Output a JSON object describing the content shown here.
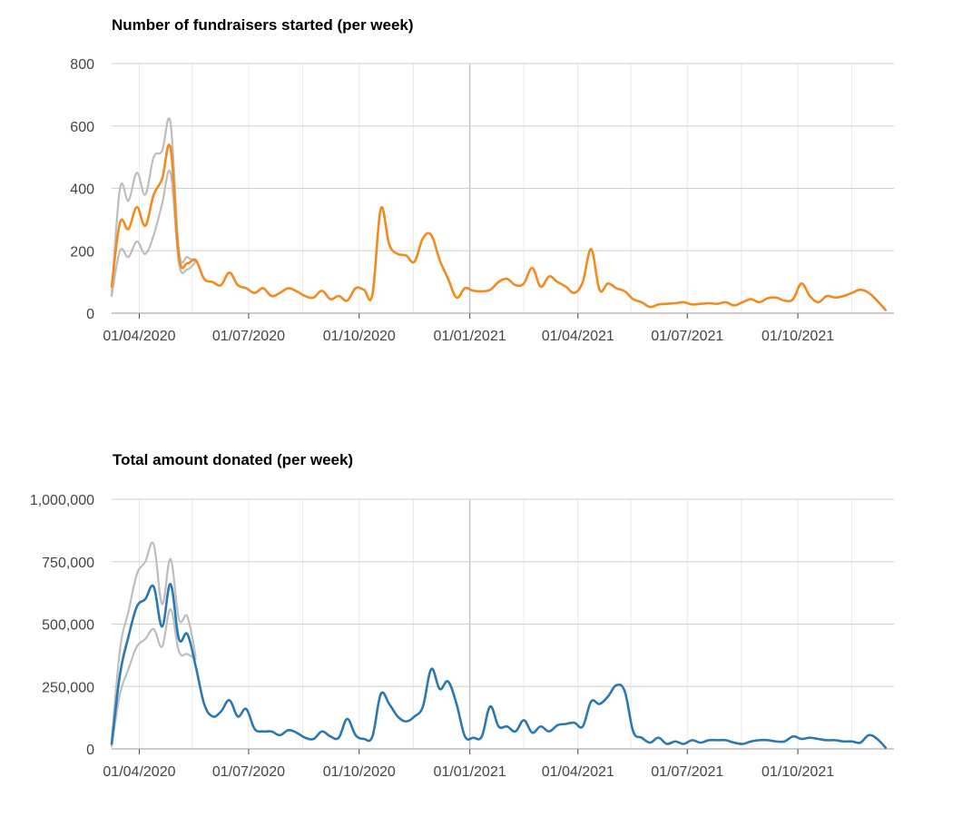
{
  "colors": {
    "fundraisers_line": "#f28a1e",
    "donations_line": "#2a78b1",
    "band_line": "#bdbdbd",
    "grid": "#d0d0d0",
    "grid_minor": "#e8e8e8",
    "axis": "#444444"
  },
  "chart_data": [
    {
      "type": "line",
      "title": "Number of fundraisers started (per week)",
      "xlabel": "",
      "ylabel": "",
      "x_ticks": [
        "01/04/2020",
        "01/07/2020",
        "01/10/2020",
        "01/01/2021",
        "01/04/2021",
        "01/07/2021",
        "01/10/2021"
      ],
      "y_ticks": [
        "0",
        "200",
        "400",
        "600",
        "800"
      ],
      "ylim": [
        0,
        800
      ],
      "xlim": [
        "2020-03-09",
        "2021-12-20"
      ],
      "grid": true,
      "legend": "none",
      "series": [
        {
          "values": [
            [
              "2020-03-09",
              85
            ],
            [
              "2020-03-16",
              290
            ],
            [
              "2020-03-23",
              270
            ],
            [
              "2020-03-30",
              340
            ],
            [
              "2020-04-06",
              280
            ],
            [
              "2020-04-13",
              380
            ],
            [
              "2020-04-20",
              430
            ],
            [
              "2020-04-27",
              530
            ],
            [
              "2020-05-04",
              180
            ],
            [
              "2020-05-11",
              160
            ],
            [
              "2020-05-18",
              170
            ],
            [
              "2020-05-25",
              110
            ],
            [
              "2020-06-01",
              100
            ],
            [
              "2020-06-08",
              90
            ],
            [
              "2020-06-15",
              130
            ],
            [
              "2020-06-22",
              90
            ],
            [
              "2020-06-29",
              80
            ],
            [
              "2020-07-06",
              65
            ],
            [
              "2020-07-13",
              80
            ],
            [
              "2020-07-20",
              55
            ],
            [
              "2020-07-27",
              65
            ],
            [
              "2020-08-03",
              80
            ],
            [
              "2020-08-10",
              70
            ],
            [
              "2020-08-17",
              55
            ],
            [
              "2020-08-24",
              50
            ],
            [
              "2020-08-31",
              72
            ],
            [
              "2020-09-07",
              45
            ],
            [
              "2020-09-14",
              55
            ],
            [
              "2020-09-21",
              40
            ],
            [
              "2020-09-28",
              80
            ],
            [
              "2020-10-05",
              75
            ],
            [
              "2020-10-12",
              60
            ],
            [
              "2020-10-19",
              335
            ],
            [
              "2020-10-26",
              220
            ],
            [
              "2020-11-02",
              190
            ],
            [
              "2020-11-09",
              185
            ],
            [
              "2020-11-16",
              165
            ],
            [
              "2020-11-23",
              240
            ],
            [
              "2020-11-30",
              250
            ],
            [
              "2020-12-07",
              170
            ],
            [
              "2020-12-14",
              110
            ],
            [
              "2020-12-21",
              50
            ],
            [
              "2020-12-28",
              80
            ],
            [
              "2021-01-04",
              72
            ],
            [
              "2021-01-11",
              70
            ],
            [
              "2021-01-18",
              75
            ],
            [
              "2021-01-25",
              100
            ],
            [
              "2021-02-01",
              110
            ],
            [
              "2021-02-08",
              90
            ],
            [
              "2021-02-15",
              95
            ],
            [
              "2021-02-22",
              145
            ],
            [
              "2021-03-01",
              85
            ],
            [
              "2021-03-08",
              118
            ],
            [
              "2021-03-15",
              100
            ],
            [
              "2021-03-22",
              85
            ],
            [
              "2021-03-29",
              65
            ],
            [
              "2021-04-05",
              100
            ],
            [
              "2021-04-12",
              205
            ],
            [
              "2021-04-19",
              75
            ],
            [
              "2021-04-26",
              95
            ],
            [
              "2021-05-03",
              80
            ],
            [
              "2021-05-10",
              70
            ],
            [
              "2021-05-17",
              45
            ],
            [
              "2021-05-24",
              35
            ],
            [
              "2021-05-31",
              20
            ],
            [
              "2021-06-07",
              28
            ],
            [
              "2021-06-14",
              30
            ],
            [
              "2021-06-21",
              32
            ],
            [
              "2021-06-28",
              35
            ],
            [
              "2021-07-05",
              28
            ],
            [
              "2021-07-12",
              30
            ],
            [
              "2021-07-19",
              32
            ],
            [
              "2021-07-26",
              30
            ],
            [
              "2021-08-02",
              35
            ],
            [
              "2021-08-09",
              25
            ],
            [
              "2021-08-16",
              35
            ],
            [
              "2021-08-23",
              45
            ],
            [
              "2021-08-30",
              35
            ],
            [
              "2021-09-06",
              48
            ],
            [
              "2021-09-13",
              50
            ],
            [
              "2021-09-20",
              40
            ],
            [
              "2021-09-27",
              45
            ],
            [
              "2021-10-04",
              95
            ],
            [
              "2021-10-11",
              55
            ],
            [
              "2021-10-18",
              35
            ],
            [
              "2021-10-25",
              55
            ],
            [
              "2021-11-01",
              50
            ],
            [
              "2021-11-08",
              55
            ],
            [
              "2021-11-15",
              65
            ],
            [
              "2021-11-22",
              75
            ],
            [
              "2021-11-29",
              65
            ],
            [
              "2021-12-06",
              40
            ],
            [
              "2021-12-13",
              10
            ]
          ]
        },
        {
          "values": [
            [
              "2020-03-09",
              60
            ],
            [
              "2020-03-16",
              400
            ],
            [
              "2020-03-23",
              360
            ],
            [
              "2020-03-30",
              450
            ],
            [
              "2020-04-06",
              380
            ],
            [
              "2020-04-13",
              500
            ],
            [
              "2020-04-20",
              520
            ],
            [
              "2020-04-27",
              610
            ],
            [
              "2020-05-04",
              200
            ],
            [
              "2020-05-11",
              180
            ],
            [
              "2020-05-18",
              165
            ]
          ]
        },
        {
          "values": [
            [
              "2020-03-09",
              55
            ],
            [
              "2020-03-16",
              200
            ],
            [
              "2020-03-23",
              180
            ],
            [
              "2020-03-30",
              230
            ],
            [
              "2020-04-06",
              190
            ],
            [
              "2020-04-13",
              250
            ],
            [
              "2020-04-20",
              350
            ],
            [
              "2020-04-27",
              450
            ],
            [
              "2020-05-04",
              160
            ],
            [
              "2020-05-11",
              140
            ],
            [
              "2020-05-18",
              165
            ]
          ]
        }
      ]
    },
    {
      "type": "line",
      "title": "Total amount donated (per week)",
      "xlabel": "",
      "ylabel": "",
      "x_ticks": [
        "01/04/2020",
        "01/07/2020",
        "01/10/2020",
        "01/01/2021",
        "01/04/2021",
        "01/07/2021",
        "01/10/2021"
      ],
      "y_ticks": [
        "0",
        "250,000",
        "500,000",
        "750,000",
        "1,000,000"
      ],
      "ylim": [
        0,
        1000000
      ],
      "xlim": [
        "2020-03-09",
        "2021-12-20"
      ],
      "grid": true,
      "legend": "none",
      "series": [
        {
          "values": [
            [
              "2020-03-09",
              20000
            ],
            [
              "2020-03-16",
              300000
            ],
            [
              "2020-03-23",
              450000
            ],
            [
              "2020-03-30",
              570000
            ],
            [
              "2020-04-06",
              600000
            ],
            [
              "2020-04-13",
              650000
            ],
            [
              "2020-04-20",
              490000
            ],
            [
              "2020-04-27",
              660000
            ],
            [
              "2020-05-04",
              440000
            ],
            [
              "2020-05-11",
              460000
            ],
            [
              "2020-05-18",
              330000
            ],
            [
              "2020-05-25",
              180000
            ],
            [
              "2020-06-01",
              130000
            ],
            [
              "2020-06-08",
              150000
            ],
            [
              "2020-06-15",
              195000
            ],
            [
              "2020-06-22",
              130000
            ],
            [
              "2020-06-29",
              160000
            ],
            [
              "2020-07-06",
              80000
            ],
            [
              "2020-07-13",
              70000
            ],
            [
              "2020-07-20",
              70000
            ],
            [
              "2020-07-27",
              55000
            ],
            [
              "2020-08-03",
              75000
            ],
            [
              "2020-08-10",
              65000
            ],
            [
              "2020-08-17",
              45000
            ],
            [
              "2020-08-24",
              40000
            ],
            [
              "2020-08-31",
              70000
            ],
            [
              "2020-09-07",
              50000
            ],
            [
              "2020-09-14",
              45000
            ],
            [
              "2020-09-21",
              120000
            ],
            [
              "2020-09-28",
              55000
            ],
            [
              "2020-10-05",
              40000
            ],
            [
              "2020-10-12",
              50000
            ],
            [
              "2020-10-19",
              220000
            ],
            [
              "2020-10-26",
              180000
            ],
            [
              "2020-11-02",
              130000
            ],
            [
              "2020-11-09",
              110000
            ],
            [
              "2020-11-16",
              130000
            ],
            [
              "2020-11-23",
              170000
            ],
            [
              "2020-11-30",
              320000
            ],
            [
              "2020-12-07",
              240000
            ],
            [
              "2020-12-14",
              270000
            ],
            [
              "2020-12-21",
              180000
            ],
            [
              "2020-12-28",
              50000
            ],
            [
              "2021-01-04",
              45000
            ],
            [
              "2021-01-11",
              50000
            ],
            [
              "2021-01-18",
              170000
            ],
            [
              "2021-01-25",
              90000
            ],
            [
              "2021-02-01",
              90000
            ],
            [
              "2021-02-08",
              70000
            ],
            [
              "2021-02-15",
              115000
            ],
            [
              "2021-02-22",
              65000
            ],
            [
              "2021-03-01",
              90000
            ],
            [
              "2021-03-08",
              70000
            ],
            [
              "2021-03-15",
              95000
            ],
            [
              "2021-03-22",
              100000
            ],
            [
              "2021-03-29",
              105000
            ],
            [
              "2021-04-05",
              90000
            ],
            [
              "2021-04-12",
              190000
            ],
            [
              "2021-04-19",
              180000
            ],
            [
              "2021-04-26",
              210000
            ],
            [
              "2021-05-03",
              255000
            ],
            [
              "2021-05-10",
              230000
            ],
            [
              "2021-05-17",
              70000
            ],
            [
              "2021-05-24",
              45000
            ],
            [
              "2021-05-31",
              25000
            ],
            [
              "2021-06-07",
              45000
            ],
            [
              "2021-06-14",
              20000
            ],
            [
              "2021-06-21",
              30000
            ],
            [
              "2021-06-28",
              20000
            ],
            [
              "2021-07-05",
              35000
            ],
            [
              "2021-07-12",
              25000
            ],
            [
              "2021-07-19",
              35000
            ],
            [
              "2021-07-26",
              35000
            ],
            [
              "2021-08-02",
              35000
            ],
            [
              "2021-08-09",
              25000
            ],
            [
              "2021-08-16",
              20000
            ],
            [
              "2021-08-23",
              30000
            ],
            [
              "2021-08-30",
              35000
            ],
            [
              "2021-09-06",
              35000
            ],
            [
              "2021-09-13",
              30000
            ],
            [
              "2021-09-20",
              30000
            ],
            [
              "2021-09-27",
              50000
            ],
            [
              "2021-10-04",
              40000
            ],
            [
              "2021-10-11",
              45000
            ],
            [
              "2021-10-18",
              40000
            ],
            [
              "2021-10-25",
              35000
            ],
            [
              "2021-11-01",
              35000
            ],
            [
              "2021-11-08",
              30000
            ],
            [
              "2021-11-15",
              30000
            ],
            [
              "2021-11-22",
              25000
            ],
            [
              "2021-11-29",
              55000
            ],
            [
              "2021-12-06",
              40000
            ],
            [
              "2021-12-13",
              5000
            ]
          ]
        },
        {
          "values": [
            [
              "2020-03-09",
              30000
            ],
            [
              "2020-03-16",
              400000
            ],
            [
              "2020-03-23",
              550000
            ],
            [
              "2020-03-30",
              700000
            ],
            [
              "2020-04-06",
              750000
            ],
            [
              "2020-04-13",
              820000
            ],
            [
              "2020-04-20",
              580000
            ],
            [
              "2020-04-27",
              760000
            ],
            [
              "2020-05-04",
              520000
            ],
            [
              "2020-05-11",
              530000
            ],
            [
              "2020-05-18",
              370000
            ]
          ]
        },
        {
          "values": [
            [
              "2020-03-09",
              10000
            ],
            [
              "2020-03-16",
              220000
            ],
            [
              "2020-03-23",
              320000
            ],
            [
              "2020-03-30",
              410000
            ],
            [
              "2020-04-06",
              440000
            ],
            [
              "2020-04-13",
              480000
            ],
            [
              "2020-04-20",
              410000
            ],
            [
              "2020-04-27",
              560000
            ],
            [
              "2020-05-04",
              390000
            ],
            [
              "2020-05-11",
              380000
            ],
            [
              "2020-05-18",
              360000
            ]
          ]
        }
      ]
    }
  ]
}
